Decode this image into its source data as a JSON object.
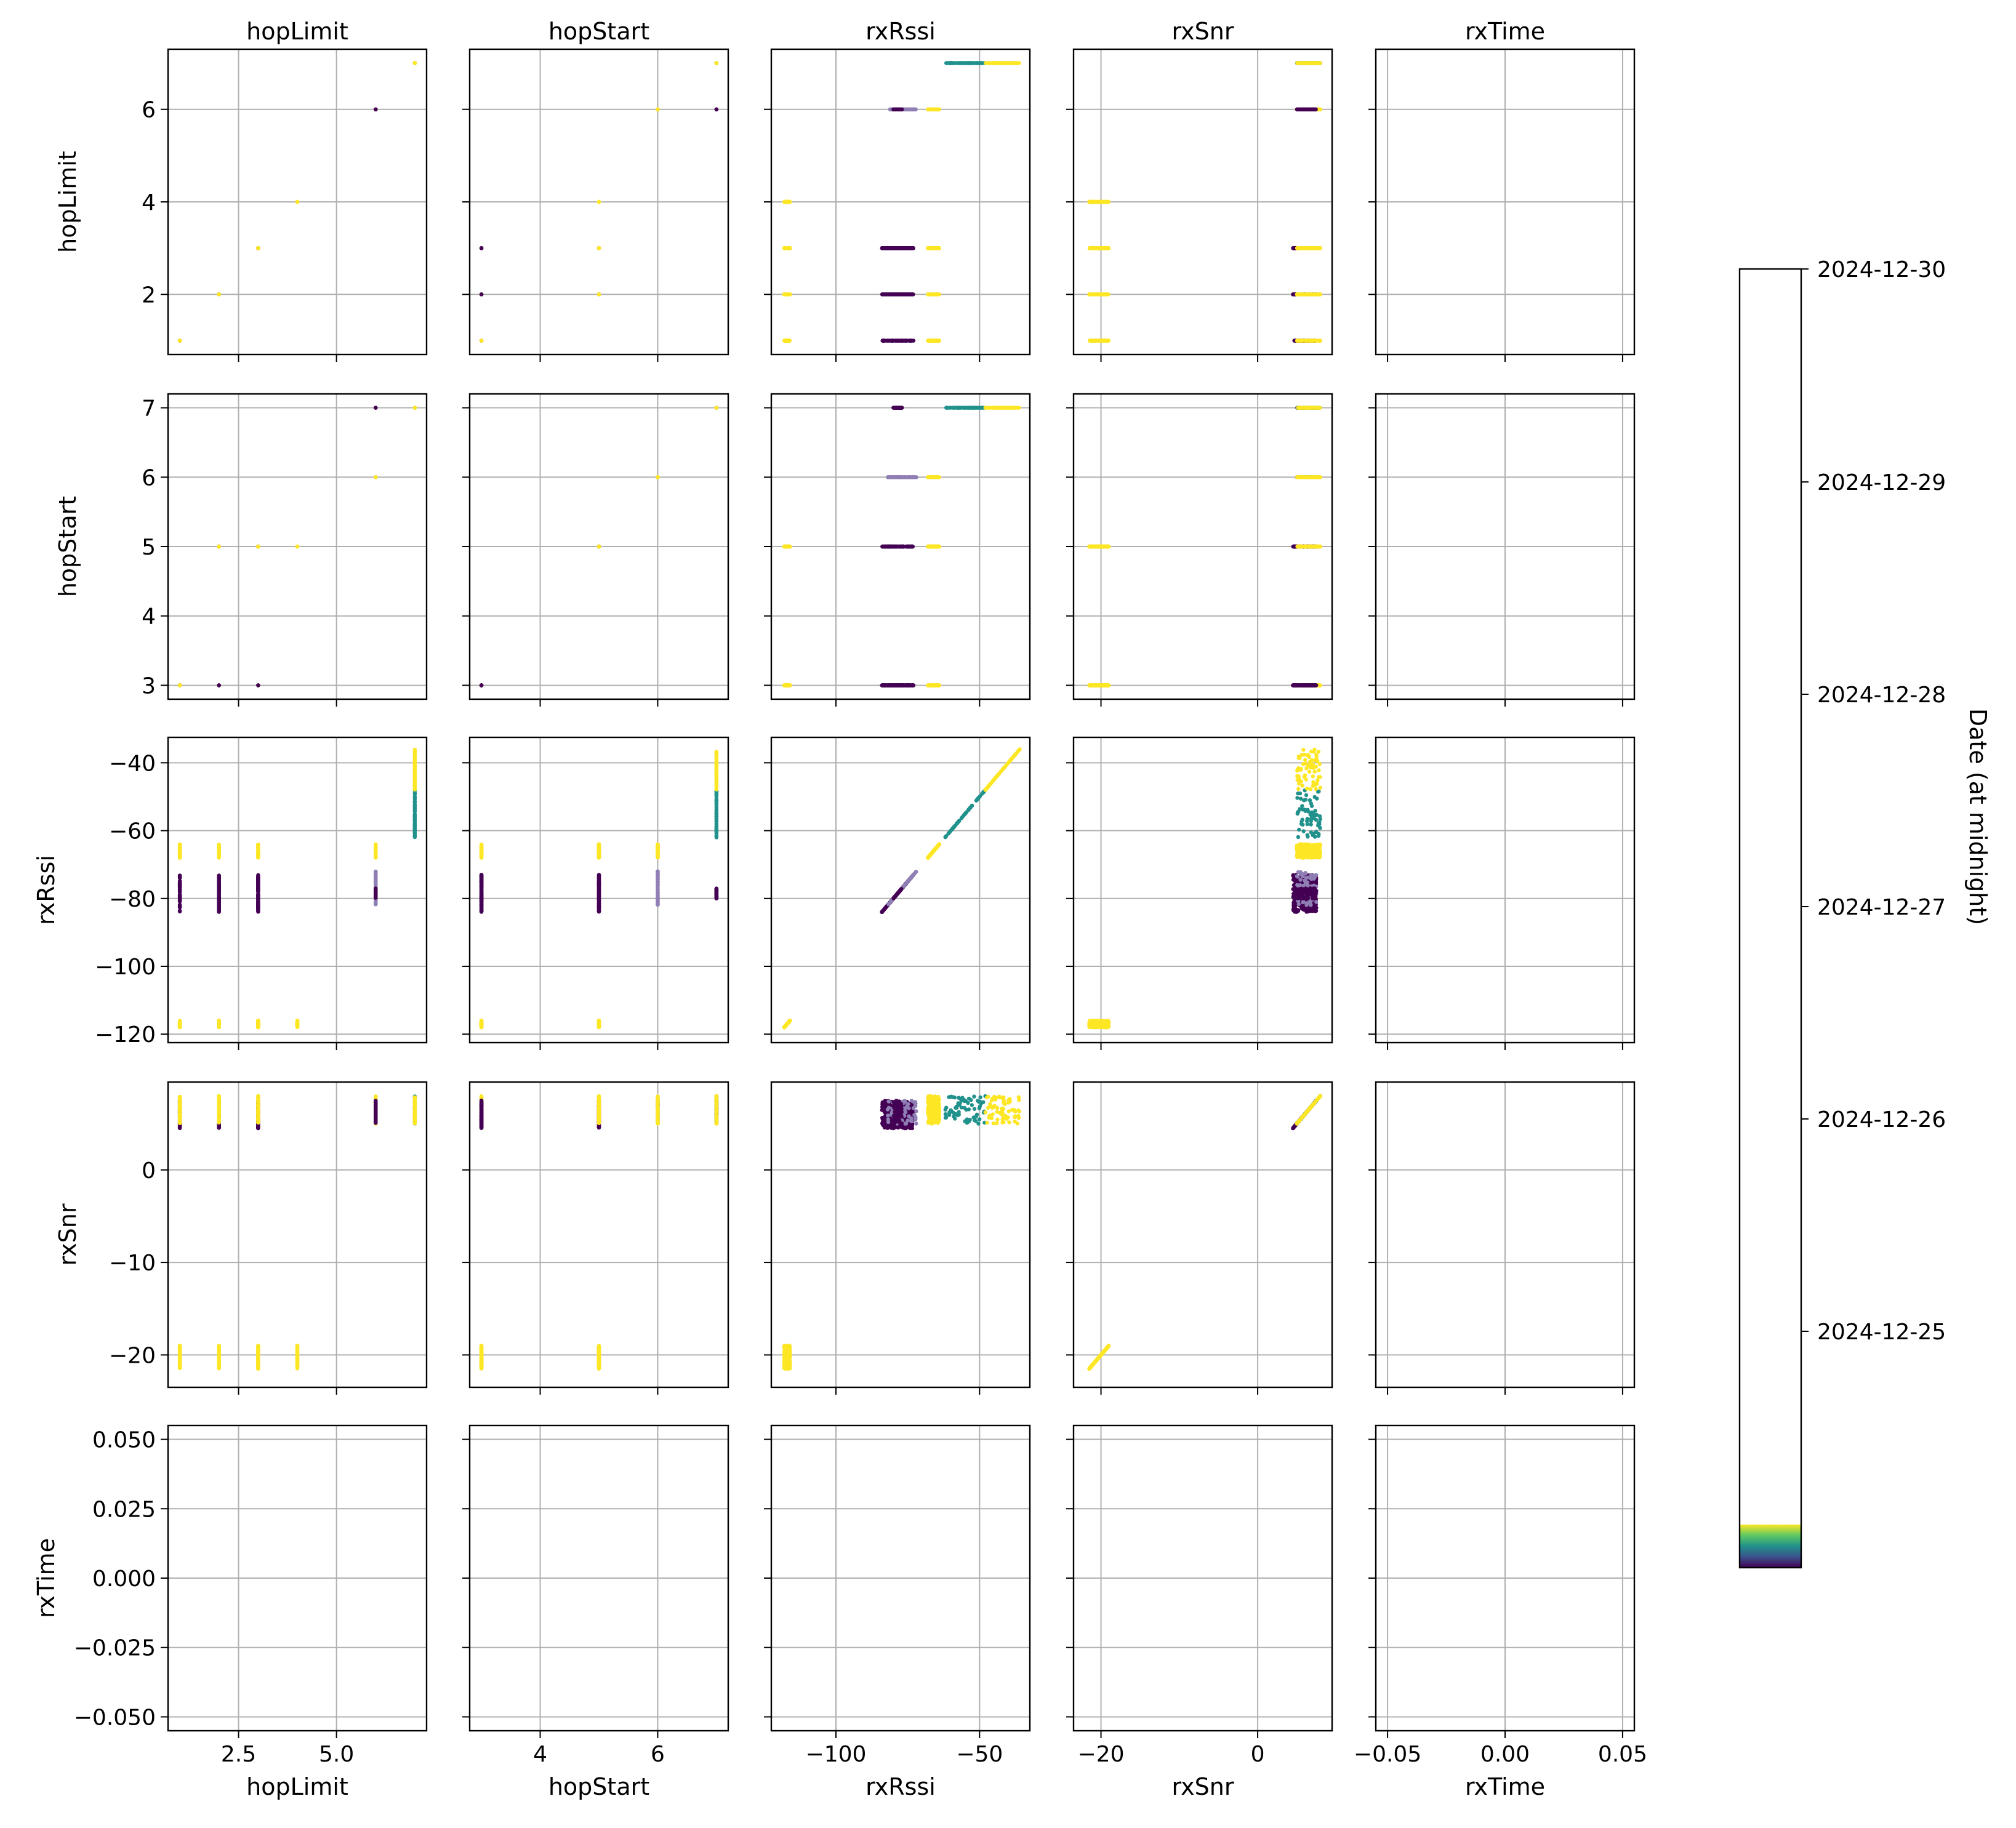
{
  "chart_data": {
    "type": "scatter",
    "title": "",
    "variables": [
      "hopLimit",
      "hopStart",
      "rxRssi",
      "rxSnr",
      "rxTime"
    ],
    "ticks": {
      "hopLimit": {
        "values": [
          2.5,
          5.0
        ],
        "labels": [
          "2.5",
          "5.0"
        ],
        "lim": [
          0.7,
          7.3
        ]
      },
      "hopLimit_y": {
        "values": [
          2,
          4,
          6
        ],
        "labels": [
          "2",
          "4",
          "6"
        ],
        "lim": [
          0.7,
          7.3
        ]
      },
      "hopStart": {
        "values": [
          4,
          6
        ],
        "labels": [
          "4",
          "6"
        ],
        "lim": [
          2.8,
          7.2
        ]
      },
      "hopStart_y": {
        "values": [
          3,
          4,
          5,
          6,
          7
        ],
        "labels": [
          "3",
          "4",
          "5",
          "6",
          "7"
        ],
        "lim": [
          2.8,
          7.2
        ]
      },
      "rxRssi": {
        "values": [
          -100,
          -50
        ],
        "labels": [
          "−100",
          "−50"
        ],
        "lim": [
          -122.5,
          -32.5
        ]
      },
      "rxRssi_y": {
        "values": [
          -120,
          -100,
          -80,
          -60,
          -40
        ],
        "labels": [
          "−120",
          "−100",
          "−80",
          "−60",
          "−40"
        ],
        "lim": [
          -122.5,
          -32.5
        ]
      },
      "rxSnr": {
        "values": [
          -20,
          0
        ],
        "labels": [
          "−20",
          "0"
        ],
        "lim": [
          -23.5,
          9.5
        ]
      },
      "rxSnr_y": {
        "values": [
          -20,
          -10,
          0
        ],
        "labels": [
          "−20",
          "−10",
          "0"
        ],
        "lim": [
          -23.5,
          9.5
        ]
      },
      "rxTime": {
        "values": [
          -0.05,
          0.0,
          0.05
        ],
        "labels": [
          "−0.05",
          "0.00",
          "0.05"
        ],
        "lim": [
          -0.055,
          0.055
        ]
      },
      "rxTime_y": {
        "values": [
          -0.05,
          -0.025,
          0.0,
          0.025,
          0.05
        ],
        "labels": [
          "−0.050",
          "−0.025",
          "0.000",
          "0.025",
          "0.050"
        ],
        "lim": [
          -0.055,
          0.055
        ]
      }
    },
    "colorbar": {
      "label": "Date (at midnight)",
      "ticks": [
        "2024-12-25",
        "2024-12-26",
        "2024-12-27",
        "2024-12-28",
        "2024-12-29",
        "2024-12-30"
      ],
      "colormap": "viridis",
      "colors": [
        "#440154",
        "#3b528b",
        "#21918c",
        "#5ec962",
        "#fde725"
      ],
      "data_range": [
        "2024-12-24",
        "2024-12-30"
      ]
    },
    "clusters": [
      {
        "hopLimit": 1,
        "hopStart": 3,
        "rxRssi": [
          -118,
          -116
        ],
        "rxSnr": [
          -21.5,
          -19
        ],
        "color": "#fde725"
      },
      {
        "hopLimit": 2,
        "hopStart": 3,
        "rxRssi": [
          -118,
          -116
        ],
        "rxSnr": [
          -21.5,
          -19
        ],
        "color": "#fde725"
      },
      {
        "hopLimit": 2,
        "hopStart": 5,
        "rxRssi": [
          -118,
          -116
        ],
        "rxSnr": [
          -21.5,
          -19
        ],
        "color": "#fde725"
      },
      {
        "hopLimit": 3,
        "hopStart": 3,
        "rxRssi": [
          -118,
          -116
        ],
        "rxSnr": [
          -21.5,
          -19
        ],
        "color": "#fde725"
      },
      {
        "hopLimit": 3,
        "hopStart": 5,
        "rxRssi": [
          -118,
          -116
        ],
        "rxSnr": [
          -21.5,
          -19
        ],
        "color": "#fde725"
      },
      {
        "hopLimit": 4,
        "hopStart": 5,
        "rxRssi": [
          -118,
          -116
        ],
        "rxSnr": [
          -21.5,
          -19
        ],
        "color": "#fde725"
      },
      {
        "hopLimit": 1,
        "hopStart": 3,
        "rxRssi": [
          -84,
          -73
        ],
        "rxSnr": [
          4.5,
          7.5
        ],
        "color": "#440154"
      },
      {
        "hopLimit": 1,
        "hopStart": 3,
        "rxRssi": [
          -68,
          -64
        ],
        "rxSnr": [
          5,
          8
        ],
        "color": "#fde725"
      },
      {
        "hopLimit": 2,
        "hopStart": 3,
        "rxRssi": [
          -84,
          -73
        ],
        "rxSnr": [
          4.5,
          7.5
        ],
        "color": "#440154"
      },
      {
        "hopLimit": 2,
        "hopStart": 5,
        "rxRssi": [
          -84,
          -73
        ],
        "rxSnr": [
          4.5,
          7.5
        ],
        "color": "#440154"
      },
      {
        "hopLimit": 2,
        "hopStart": 5,
        "rxRssi": [
          -68,
          -64
        ],
        "rxSnr": [
          5,
          8
        ],
        "color": "#fde725"
      },
      {
        "hopLimit": 3,
        "hopStart": 3,
        "rxRssi": [
          -84,
          -73
        ],
        "rxSnr": [
          4.5,
          7.5
        ],
        "color": "#440154"
      },
      {
        "hopLimit": 3,
        "hopStart": 5,
        "rxRssi": [
          -84,
          -73
        ],
        "rxSnr": [
          4.5,
          7.5
        ],
        "color": "#440154"
      },
      {
        "hopLimit": 3,
        "hopStart": 5,
        "rxRssi": [
          -68,
          -64
        ],
        "rxSnr": [
          5,
          8
        ],
        "color": "#fde725"
      },
      {
        "hopLimit": 6,
        "hopStart": 6,
        "rxRssi": [
          -82,
          -72
        ],
        "rxSnr": [
          5,
          7.5
        ],
        "color": "#8f7fb5"
      },
      {
        "hopLimit": 6,
        "hopStart": 6,
        "rxRssi": [
          -68,
          -64
        ],
        "rxSnr": [
          5,
          8
        ],
        "color": "#fde725"
      },
      {
        "hopLimit": 6,
        "hopStart": 7,
        "rxRssi": [
          -80,
          -77
        ],
        "rxSnr": [
          5,
          7.5
        ],
        "color": "#440154"
      },
      {
        "hopLimit": 7,
        "hopStart": 7,
        "rxRssi": [
          -62,
          -48
        ],
        "rxSnr": [
          5,
          8
        ],
        "color": "#21918c"
      },
      {
        "hopLimit": 7,
        "hopStart": 7,
        "rxRssi": [
          -48,
          -36
        ],
        "rxSnr": [
          5,
          8
        ],
        "color": "#fde725"
      }
    ]
  }
}
